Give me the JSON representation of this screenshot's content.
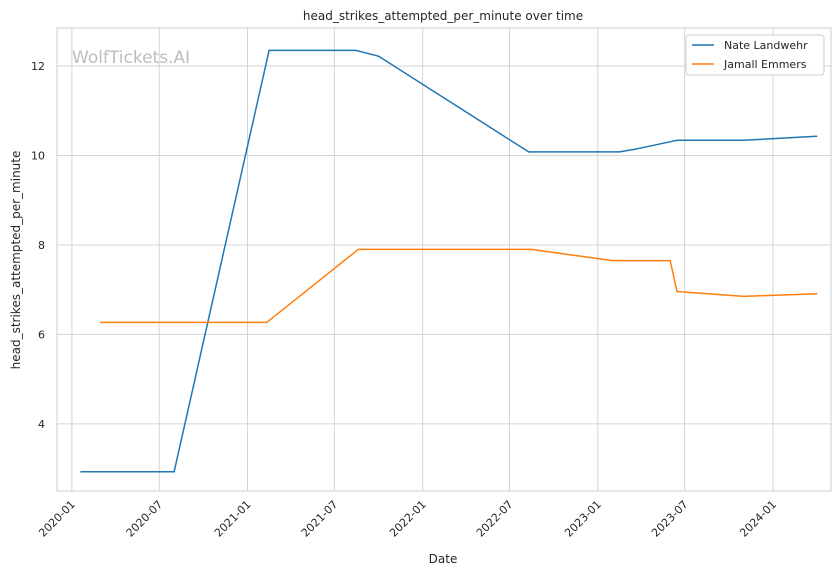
{
  "chart_data": {
    "type": "line",
    "title": "head_strikes_attempted_per_minute over time",
    "xlabel": "Date",
    "ylabel": "head_strikes_attempted_per_minute",
    "x_ticks": [
      "2020-01",
      "2020-07",
      "2021-01",
      "2021-07",
      "2022-01",
      "2022-07",
      "2023-01",
      "2023-07",
      "2024-01"
    ],
    "y_ticks": [
      4,
      6,
      8,
      10,
      12
    ],
    "xlim": [
      "2019-12-01",
      "2024-05-01"
    ],
    "ylim": [
      2.5,
      12.85
    ],
    "grid": true,
    "legend_position": "top-right",
    "colors": {
      "Nate Landwehr": "#1f77b4",
      "Jamall Emmers": "#ff7f0e",
      "grid": "#d5d5d5",
      "axis": "#cccccc"
    },
    "series": [
      {
        "name": "Nate Landwehr",
        "points": [
          {
            "x": "2020-01-20",
            "y": 2.93
          },
          {
            "x": "2020-08-01",
            "y": 2.93
          },
          {
            "x": "2021-02-15",
            "y": 12.35
          },
          {
            "x": "2021-08-15",
            "y": 12.35
          },
          {
            "x": "2021-10-01",
            "y": 12.22
          },
          {
            "x": "2022-08-10",
            "y": 10.08
          },
          {
            "x": "2023-02-15",
            "y": 10.08
          },
          {
            "x": "2023-03-20",
            "y": 10.14
          },
          {
            "x": "2023-06-15",
            "y": 10.34
          },
          {
            "x": "2023-11-01",
            "y": 10.34
          },
          {
            "x": "2024-04-01",
            "y": 10.43
          }
        ]
      },
      {
        "name": "Jamall Emmers",
        "points": [
          {
            "x": "2020-03-01",
            "y": 6.27
          },
          {
            "x": "2021-02-10",
            "y": 6.27
          },
          {
            "x": "2021-08-20",
            "y": 7.9
          },
          {
            "x": "2022-08-15",
            "y": 7.9
          },
          {
            "x": "2023-02-01",
            "y": 7.65
          },
          {
            "x": "2023-06-01",
            "y": 7.65
          },
          {
            "x": "2023-06-15",
            "y": 6.96
          },
          {
            "x": "2023-11-01",
            "y": 6.85
          },
          {
            "x": "2024-04-01",
            "y": 6.91
          }
        ]
      }
    ]
  },
  "watermark": "WolfTickets.AI"
}
